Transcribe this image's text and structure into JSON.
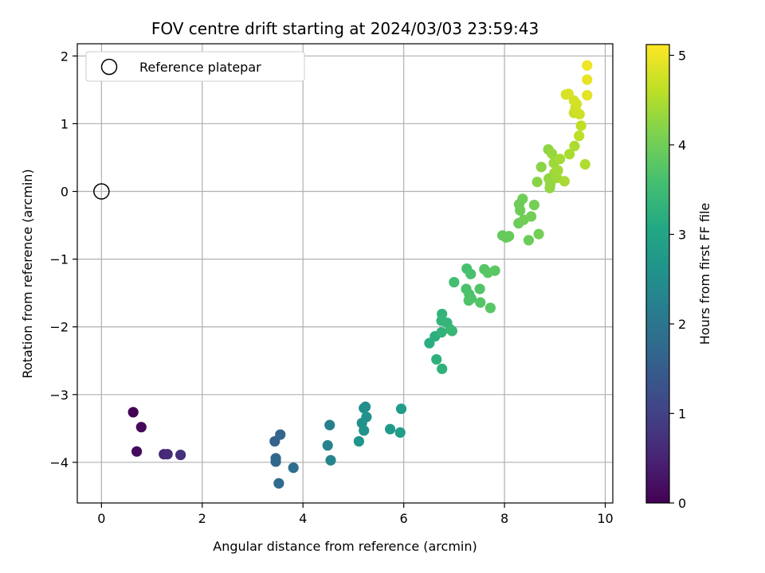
{
  "chart_data": {
    "type": "scatter",
    "title": "FOV centre drift starting at 2024/03/03 23:59:43",
    "xlabel": "Angular distance from reference (arcmin)",
    "ylabel": "Rotation from reference (arcmin)",
    "colorbar_label": "Hours from first FF file",
    "xlim": [
      -0.48,
      10.15
    ],
    "ylim": [
      -4.6,
      2.18
    ],
    "xticks": [
      0,
      2,
      4,
      6,
      8,
      10
    ],
    "yticks": [
      -4,
      -3,
      -2,
      -1,
      0,
      1,
      2
    ],
    "colorbar_range": [
      0,
      5.12
    ],
    "colorbar_ticks": [
      0,
      1,
      2,
      3,
      4,
      5
    ],
    "colormap": "viridis",
    "grid": true,
    "legend": {
      "placement": "upper-left",
      "entries": [
        {
          "label": "Reference platepar",
          "marker": "open-circle",
          "x": 0,
          "y": 0
        }
      ]
    },
    "points": [
      {
        "x": 0.63,
        "y": -3.26,
        "t": 0.0
      },
      {
        "x": 0.79,
        "y": -3.48,
        "t": 0.1
      },
      {
        "x": 0.7,
        "y": -3.84,
        "t": 0.15
      },
      {
        "x": 1.24,
        "y": -3.88,
        "t": 0.55
      },
      {
        "x": 1.31,
        "y": -3.88,
        "t": 0.6
      },
      {
        "x": 1.57,
        "y": -3.89,
        "t": 0.7
      },
      {
        "x": 3.44,
        "y": -3.69,
        "t": 1.6
      },
      {
        "x": 3.55,
        "y": -3.59,
        "t": 1.65
      },
      {
        "x": 3.46,
        "y": -3.94,
        "t": 1.7
      },
      {
        "x": 3.46,
        "y": -3.99,
        "t": 1.75
      },
      {
        "x": 3.81,
        "y": -4.08,
        "t": 1.85
      },
      {
        "x": 3.52,
        "y": -4.31,
        "t": 1.8
      },
      {
        "x": 4.53,
        "y": -3.45,
        "t": 2.2
      },
      {
        "x": 4.49,
        "y": -3.75,
        "t": 2.25
      },
      {
        "x": 4.55,
        "y": -3.97,
        "t": 2.3
      },
      {
        "x": 5.21,
        "y": -3.2,
        "t": 2.5
      },
      {
        "x": 5.24,
        "y": -3.18,
        "t": 2.52
      },
      {
        "x": 5.17,
        "y": -3.42,
        "t": 2.55
      },
      {
        "x": 5.26,
        "y": -3.33,
        "t": 2.57
      },
      {
        "x": 5.21,
        "y": -3.53,
        "t": 2.6
      },
      {
        "x": 5.11,
        "y": -3.69,
        "t": 2.62
      },
      {
        "x": 5.73,
        "y": -3.51,
        "t": 2.75
      },
      {
        "x": 5.95,
        "y": -3.21,
        "t": 2.8
      },
      {
        "x": 5.93,
        "y": -3.56,
        "t": 2.82
      },
      {
        "x": 6.51,
        "y": -2.24,
        "t": 3.2
      },
      {
        "x": 6.62,
        "y": -2.14,
        "t": 3.22
      },
      {
        "x": 6.65,
        "y": -2.48,
        "t": 3.25
      },
      {
        "x": 6.76,
        "y": -2.62,
        "t": 3.27
      },
      {
        "x": 6.75,
        "y": -2.08,
        "t": 3.3
      },
      {
        "x": 6.76,
        "y": -1.81,
        "t": 3.32
      },
      {
        "x": 6.75,
        "y": -1.91,
        "t": 3.34
      },
      {
        "x": 6.86,
        "y": -1.94,
        "t": 3.36
      },
      {
        "x": 6.93,
        "y": -2.04,
        "t": 3.38
      },
      {
        "x": 6.96,
        "y": -2.06,
        "t": 3.4
      },
      {
        "x": 7.0,
        "y": -1.34,
        "t": 3.55
      },
      {
        "x": 7.25,
        "y": -1.14,
        "t": 3.6
      },
      {
        "x": 7.33,
        "y": -1.22,
        "t": 3.62
      },
      {
        "x": 7.24,
        "y": -1.44,
        "t": 3.64
      },
      {
        "x": 7.3,
        "y": -1.52,
        "t": 3.66
      },
      {
        "x": 7.34,
        "y": -1.58,
        "t": 3.68
      },
      {
        "x": 7.29,
        "y": -1.61,
        "t": 3.7
      },
      {
        "x": 7.51,
        "y": -1.44,
        "t": 3.72
      },
      {
        "x": 7.52,
        "y": -1.64,
        "t": 3.74
      },
      {
        "x": 7.6,
        "y": -1.15,
        "t": 3.76
      },
      {
        "x": 7.67,
        "y": -1.2,
        "t": 3.78
      },
      {
        "x": 7.81,
        "y": -1.17,
        "t": 3.8
      },
      {
        "x": 7.72,
        "y": -1.72,
        "t": 3.77
      },
      {
        "x": 7.96,
        "y": -0.65,
        "t": 3.9
      },
      {
        "x": 8.03,
        "y": -0.68,
        "t": 3.92
      },
      {
        "x": 8.09,
        "y": -0.66,
        "t": 3.93
      },
      {
        "x": 8.06,
        "y": -0.67,
        "t": 3.91
      },
      {
        "x": 8.28,
        "y": -0.47,
        "t": 3.95
      },
      {
        "x": 8.29,
        "y": -0.19,
        "t": 3.97
      },
      {
        "x": 8.36,
        "y": -0.11,
        "t": 3.99
      },
      {
        "x": 8.31,
        "y": -0.28,
        "t": 3.98
      },
      {
        "x": 8.38,
        "y": -0.42,
        "t": 4.0
      },
      {
        "x": 8.53,
        "y": -0.37,
        "t": 4.02
      },
      {
        "x": 8.48,
        "y": -0.72,
        "t": 3.96
      },
      {
        "x": 8.68,
        "y": -0.63,
        "t": 4.03
      },
      {
        "x": 8.59,
        "y": -0.2,
        "t": 4.04
      },
      {
        "x": 8.65,
        "y": 0.14,
        "t": 4.2
      },
      {
        "x": 8.73,
        "y": 0.36,
        "t": 4.22
      },
      {
        "x": 8.87,
        "y": 0.62,
        "t": 4.24
      },
      {
        "x": 8.88,
        "y": 0.19,
        "t": 4.26
      },
      {
        "x": 8.9,
        "y": 0.05,
        "t": 4.28
      },
      {
        "x": 8.91,
        "y": 0.11,
        "t": 4.3
      },
      {
        "x": 8.94,
        "y": 0.56,
        "t": 4.32
      },
      {
        "x": 8.98,
        "y": 0.42,
        "t": 4.34
      },
      {
        "x": 8.99,
        "y": 0.27,
        "t": 4.36
      },
      {
        "x": 9.04,
        "y": 0.2,
        "t": 4.38
      },
      {
        "x": 9.06,
        "y": 0.31,
        "t": 4.4
      },
      {
        "x": 9.1,
        "y": 0.48,
        "t": 4.42
      },
      {
        "x": 9.19,
        "y": 0.15,
        "t": 4.44
      },
      {
        "x": 9.29,
        "y": 0.55,
        "t": 4.46
      },
      {
        "x": 9.39,
        "y": 0.67,
        "t": 4.48
      },
      {
        "x": 9.6,
        "y": 0.4,
        "t": 4.5
      },
      {
        "x": 9.48,
        "y": 0.82,
        "t": 4.6
      },
      {
        "x": 9.52,
        "y": 0.97,
        "t": 4.62
      },
      {
        "x": 9.38,
        "y": 1.16,
        "t": 4.7
      },
      {
        "x": 9.41,
        "y": 1.23,
        "t": 4.72
      },
      {
        "x": 9.49,
        "y": 1.14,
        "t": 4.74
      },
      {
        "x": 9.43,
        "y": 1.29,
        "t": 4.76
      },
      {
        "x": 9.38,
        "y": 1.34,
        "t": 4.78
      },
      {
        "x": 9.22,
        "y": 1.43,
        "t": 4.8
      },
      {
        "x": 9.27,
        "y": 1.44,
        "t": 4.82
      },
      {
        "x": 9.64,
        "y": 1.42,
        "t": 4.9
      },
      {
        "x": 9.64,
        "y": 1.65,
        "t": 4.95
      },
      {
        "x": 9.64,
        "y": 1.86,
        "t": 5.0
      }
    ]
  }
}
